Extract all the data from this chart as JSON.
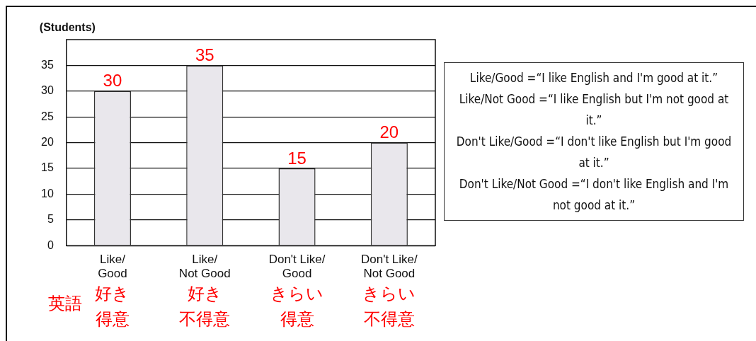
{
  "chart_data": {
    "type": "bar",
    "ylabel": "(Students)",
    "categories": [
      "Like/\nGood",
      "Like/\nNot Good",
      "Don't Like/\nGood",
      "Don't Like/\nNot Good"
    ],
    "values": [
      30,
      35,
      15,
      20
    ],
    "color": "#e9e7ec",
    "data_labels": true,
    "ylim": [
      0,
      40
    ],
    "yticks": [
      0,
      5,
      10,
      15,
      20,
      25,
      30,
      35
    ],
    "grid": "y",
    "legend": false,
    "annotations": [
      "英語",
      "好き",
      "好き",
      "きらい",
      "きらい",
      "得意",
      "不得意",
      "得意",
      "不得意",
      "Like/Good =“I like English and I'm good at it.”",
      "Like/Not Good =“I like English but I'm not good at it.”",
      "Don't Like/Good =“I don't like English but I'm good at it.”",
      "Don't Like/Not Good =“I don't like English and I'm not good at it.”"
    ]
  }
}
